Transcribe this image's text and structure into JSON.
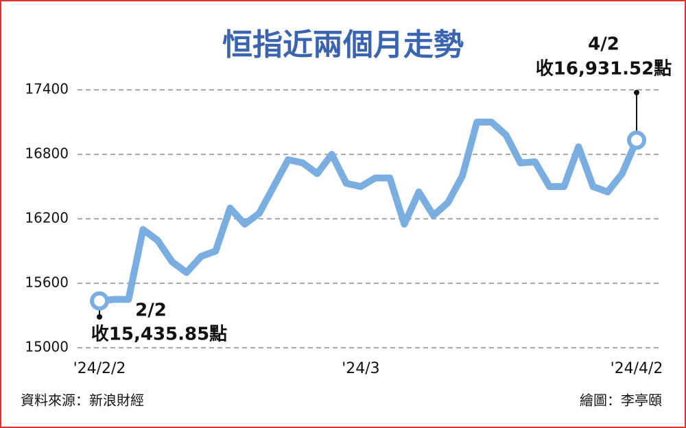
{
  "chart_data": {
    "type": "line",
    "title": "恒指近兩個月走勢",
    "categories": [
      "'24/2/2",
      null,
      null,
      null,
      null,
      null,
      null,
      null,
      null,
      null,
      null,
      null,
      null,
      null,
      null,
      null,
      null,
      null,
      "'24/3",
      null,
      null,
      null,
      null,
      null,
      null,
      null,
      null,
      null,
      null,
      null,
      null,
      null,
      null,
      null,
      null,
      null,
      null,
      "'24/4/2"
    ],
    "values": [
      15435.85,
      15450,
      15450,
      16100,
      16000,
      15800,
      15700,
      15850,
      15900,
      16300,
      16150,
      16250,
      16500,
      16750,
      16720,
      16620,
      16800,
      16530,
      16500,
      16580,
      16580,
      16150,
      16450,
      16230,
      16350,
      16600,
      17100,
      17100,
      16980,
      16720,
      16730,
      16500,
      16500,
      16870,
      16500,
      16450,
      16620,
      16931.52
    ],
    "color": "#7aaee0",
    "ylim": [
      15000,
      17400
    ],
    "yticks": [
      15000,
      15600,
      16200,
      16800,
      17400
    ],
    "grid": true,
    "annotations": [
      "2/2",
      "收15,435.85點",
      "4/2",
      "收16,931.52點"
    ],
    "source": "資料來源：新浪財經",
    "credit": "繪圖：李亭頤"
  }
}
